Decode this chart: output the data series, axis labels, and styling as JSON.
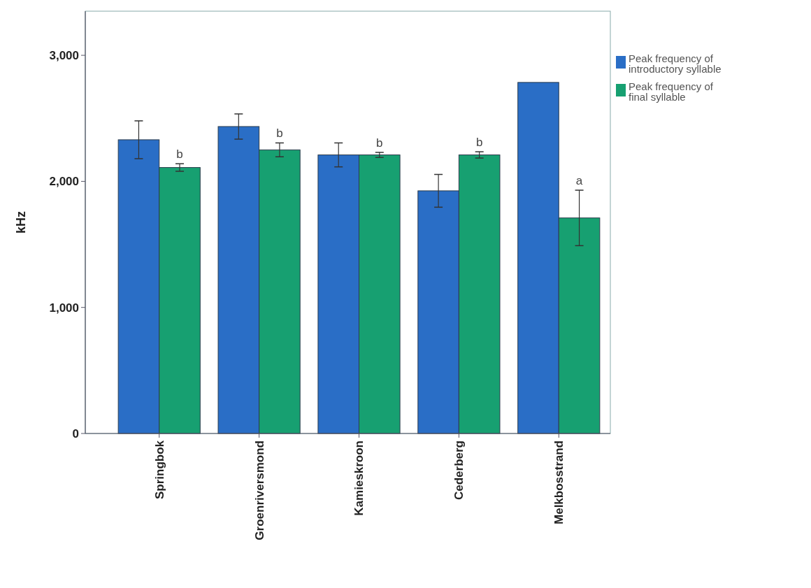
{
  "chart_data": {
    "type": "bar",
    "ylabel": "kHz",
    "categories": [
      "Springbok",
      "Groenriversmond",
      "Kamieskroon",
      "Cederberg",
      "Melkbosstrand"
    ],
    "series": [
      {
        "name": "Peak frequency of introductory syllable",
        "color": "#2a6ec6",
        "values": [
          2330,
          2435,
          2210,
          1925,
          2785
        ],
        "errors": [
          150,
          100,
          95,
          130,
          null
        ]
      },
      {
        "name": "Peak frequency of final syllable",
        "color": "#17a071",
        "values": [
          2110,
          2250,
          2210,
          2210,
          1710
        ],
        "errors": [
          30,
          55,
          20,
          25,
          220
        ]
      }
    ],
    "ylim": [
      0,
      3350
    ],
    "yticks": [
      {
        "value": 0,
        "label": "0"
      },
      {
        "value": 1000,
        "label": "1,000"
      },
      {
        "value": 2000,
        "label": "2,000"
      },
      {
        "value": 3000,
        "label": "3,000"
      }
    ],
    "legend": "top right",
    "grid": false,
    "annotations": [
      {
        "text": "b",
        "x": "Springbok",
        "y": 2140
      },
      {
        "text": "b",
        "x": "Groenriversmond",
        "y": 2305
      },
      {
        "text": "b",
        "x": "Kamieskroon",
        "y": 2230
      },
      {
        "text": "b",
        "x": "Cederberg",
        "y": 2235
      },
      {
        "text": "a",
        "x": "Melkbosstrand",
        "y": 1930
      }
    ]
  }
}
